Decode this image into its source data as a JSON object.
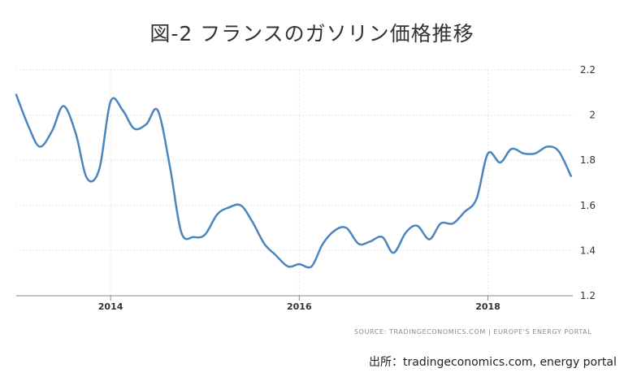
{
  "title": "図-2 フランスのガソリン価格推移",
  "source_line": "SOURCE: TRADINGECONOMICS.COM | EUROPE'S ENERGY PORTAL",
  "credit": "出所：tradingeconomics.com, energy portal",
  "colors": {
    "line": "#4a86bd",
    "grid": "#e6e6e6",
    "axis": "#8a8a8a",
    "tick_text": "#333333"
  },
  "chart_data": {
    "type": "line",
    "title": "図-2 フランスのガソリン価格推移",
    "xlabel": "",
    "ylabel": "",
    "xlim": [
      2013.0,
      2018.9
    ],
    "ylim": [
      1.2,
      2.2
    ],
    "grid": {
      "x": true,
      "y": true,
      "style": "dashed"
    },
    "y_axis_position": "right",
    "x_ticks": [
      {
        "value": 2014,
        "label": "2014"
      },
      {
        "value": 2016,
        "label": "2016"
      },
      {
        "value": 2018,
        "label": "2018"
      }
    ],
    "y_ticks": [
      {
        "value": 1.2,
        "label": "1.2"
      },
      {
        "value": 1.4,
        "label": "1.4"
      },
      {
        "value": 1.6,
        "label": "1.6"
      },
      {
        "value": 1.8,
        "label": "1.8"
      },
      {
        "value": 2.0,
        "label": "2"
      },
      {
        "value": 2.2,
        "label": "2.2"
      }
    ],
    "series": [
      {
        "x": [
          2013.0,
          2013.13,
          2013.25,
          2013.38,
          2013.5,
          2013.63,
          2013.75,
          2013.88,
          2014.0,
          2014.13,
          2014.25,
          2014.38,
          2014.5,
          2014.63,
          2014.75,
          2014.88,
          2015.0,
          2015.13,
          2015.25,
          2015.38,
          2015.5,
          2015.63,
          2015.75,
          2015.88,
          2016.0,
          2016.13,
          2016.25,
          2016.38,
          2016.5,
          2016.63,
          2016.75,
          2016.88,
          2017.0,
          2017.13,
          2017.25,
          2017.38,
          2017.5,
          2017.63,
          2017.75,
          2017.88,
          2018.0,
          2018.13,
          2018.25,
          2018.38,
          2018.5,
          2018.63,
          2018.75,
          2018.88
        ],
        "values": [
          2.09,
          1.95,
          1.86,
          1.93,
          2.04,
          1.92,
          1.72,
          1.76,
          2.06,
          2.02,
          1.94,
          1.96,
          2.02,
          1.77,
          1.48,
          1.46,
          1.47,
          1.56,
          1.59,
          1.6,
          1.53,
          1.43,
          1.38,
          1.33,
          1.34,
          1.33,
          1.43,
          1.49,
          1.5,
          1.43,
          1.44,
          1.46,
          1.39,
          1.48,
          1.51,
          1.45,
          1.52,
          1.52,
          1.57,
          1.63,
          1.83,
          1.79,
          1.85,
          1.83,
          1.83,
          1.86,
          1.84,
          1.73
        ]
      }
    ]
  }
}
